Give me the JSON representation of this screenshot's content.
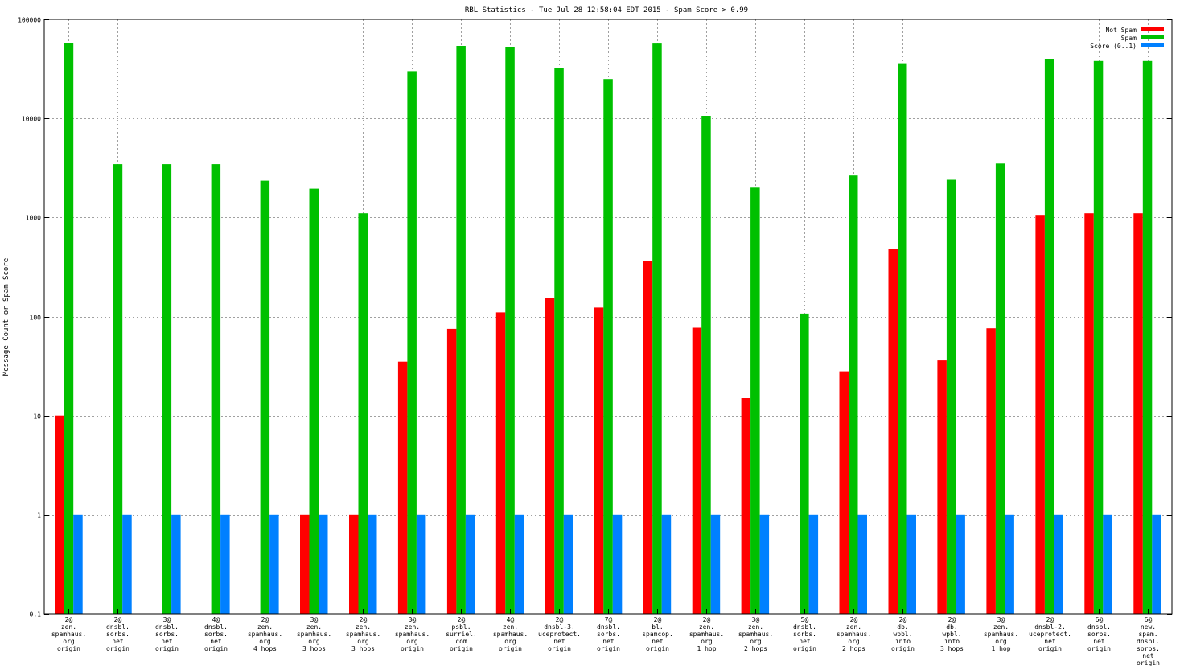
{
  "chart_data": {
    "type": "bar",
    "title": "RBL Statistics - Tue Jul 28 12:58:04 EDT 2015 - Spam Score > 0.99",
    "ylabel": "Message Count or Spam Score",
    "xlabel": "",
    "yscale": "log",
    "ylim": [
      0.1,
      100000
    ],
    "yticks": [
      0.1,
      1,
      10,
      100,
      1000,
      10000,
      100000
    ],
    "ytick_labels": [
      "0.1",
      "1",
      "10",
      "100",
      "1000",
      "10000",
      "100000"
    ],
    "grid": true,
    "legend_position": "top-right",
    "categories": [
      [
        "2@",
        "zen.",
        "spamhaus.",
        "org",
        "origin"
      ],
      [
        "2@",
        "dnsbl.",
        "sorbs.",
        "net",
        "origin"
      ],
      [
        "3@",
        "dnsbl.",
        "sorbs.",
        "net",
        "origin"
      ],
      [
        "4@",
        "dnsbl.",
        "sorbs.",
        "net",
        "origin"
      ],
      [
        "2@",
        "zen.",
        "spamhaus.",
        "org",
        "4 hops"
      ],
      [
        "3@",
        "zen.",
        "spamhaus.",
        "org",
        "3 hops"
      ],
      [
        "2@",
        "zen.",
        "spamhaus.",
        "org",
        "3 hops"
      ],
      [
        "3@",
        "zen.",
        "spamhaus.",
        "org",
        "origin"
      ],
      [
        "2@",
        "psbl.",
        "surriel.",
        "com",
        "origin"
      ],
      [
        "4@",
        "zen.",
        "spamhaus.",
        "org",
        "origin"
      ],
      [
        "2@",
        "dnsbl-3.",
        "uceprotect.",
        "net",
        "origin"
      ],
      [
        "7@",
        "dnsbl.",
        "sorbs.",
        "net",
        "origin"
      ],
      [
        "2@",
        "bl.",
        "spamcop.",
        "net",
        "origin"
      ],
      [
        "2@",
        "zen.",
        "spamhaus.",
        "org",
        "1 hop"
      ],
      [
        "3@",
        "zen.",
        "spamhaus.",
        "org",
        "2 hops"
      ],
      [
        "5@",
        "dnsbl.",
        "sorbs.",
        "net",
        "origin"
      ],
      [
        "2@",
        "zen.",
        "spamhaus.",
        "org",
        "2 hops"
      ],
      [
        "2@",
        "db.",
        "wpbl.",
        "info",
        "origin"
      ],
      [
        "2@",
        "db.",
        "wpbl.",
        "info",
        "3 hops"
      ],
      [
        "3@",
        "zen.",
        "spamhaus.",
        "org",
        "1 hop"
      ],
      [
        "2@",
        "dnsbl-2.",
        "uceprotect.",
        "net",
        "origin"
      ],
      [
        "6@",
        "dnsbl.",
        "sorbs.",
        "net",
        "origin"
      ],
      [
        "6@",
        "new.",
        "spam.",
        "dnsbl.",
        "sorbs.",
        "net",
        "origin"
      ]
    ],
    "series": [
      {
        "name": "Not Spam",
        "color": "#ff0000",
        "values": [
          10,
          null,
          null,
          null,
          null,
          1,
          1,
          35,
          75,
          110,
          155,
          123,
          365,
          77,
          15,
          null,
          28,
          480,
          36,
          76,
          1060,
          1100,
          1100
        ]
      },
      {
        "name": "Spam",
        "color": "#00c000",
        "values": [
          58000,
          3450,
          3450,
          3450,
          2350,
          1950,
          1100,
          30000,
          54000,
          53000,
          32000,
          25000,
          57000,
          10600,
          2000,
          107,
          2650,
          36000,
          2400,
          3500,
          40000,
          38000,
          38000
        ]
      },
      {
        "name": "Score (0..1)",
        "color": "#0080ff",
        "values": [
          1,
          1,
          1,
          1,
          1,
          1,
          1,
          1,
          1,
          1,
          1,
          1,
          1,
          1,
          1,
          1,
          1,
          1,
          1,
          1,
          1,
          1,
          1
        ]
      }
    ]
  }
}
